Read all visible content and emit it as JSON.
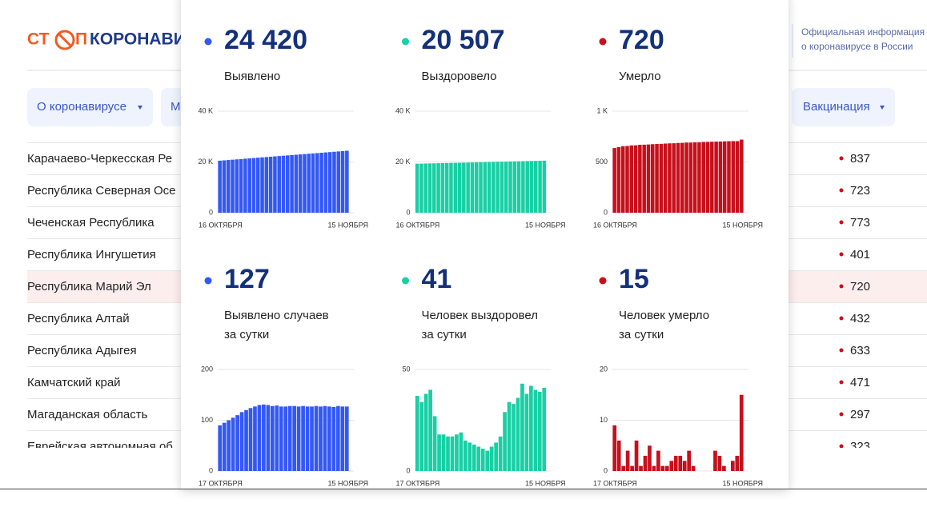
{
  "header": {
    "logo": {
      "left": "СТ",
      "middle": "П",
      "right": "КОРОНАВИ"
    },
    "info": [
      "Официальная информация",
      "о коронавирусе в России"
    ]
  },
  "nav": [
    "О коронавирусе",
    "М",
    "Вакцинация"
  ],
  "table": {
    "highlight_row": 4,
    "rows": [
      [
        "Карачаево-Черкесская Ре",
        837
      ],
      [
        "Республика Северная Осе",
        723
      ],
      [
        "Чеченская Республика",
        773
      ],
      [
        "Республика Ингушетия",
        401
      ],
      [
        "Республика Марий Эл",
        720
      ],
      [
        "Республика Алтай",
        432
      ],
      [
        "Республика Адыгея",
        633
      ],
      [
        "Камчатский край",
        471
      ],
      [
        "Магаданская область",
        297
      ],
      [
        "Еврейская автономная об",
        323
      ]
    ]
  },
  "panels": [
    {
      "value": "24 420",
      "label": [
        "Выявлено"
      ]
    },
    {
      "value": "20 507",
      "label": [
        "Выздоровело"
      ]
    },
    {
      "value": "720",
      "label": [
        "Умерло"
      ]
    },
    {
      "value": "127",
      "label": [
        "Выявлено случаев",
        "за сутки"
      ]
    },
    {
      "value": "41",
      "label": [
        "Человек выздоровел",
        "за сутки"
      ]
    },
    {
      "value": "15",
      "label": [
        "Человек умерло",
        "за сутки"
      ]
    }
  ],
  "chart_data": [
    {
      "type": "bar",
      "color": "#3358f4",
      "grid": true,
      "ylim": [
        0,
        40000
      ],
      "yticks": [
        0,
        {
          "value": 20000,
          "label": "20 K"
        },
        {
          "value": 40000,
          "label": "40 K"
        }
      ],
      "categories": [
        "16 ОКТЯБРЯ",
        null,
        null,
        null,
        null,
        null,
        null,
        null,
        null,
        null,
        null,
        null,
        null,
        null,
        null,
        null,
        null,
        null,
        null,
        null,
        null,
        null,
        null,
        null,
        null,
        null,
        null,
        null,
        null,
        null,
        "15 НОЯБРЯ"
      ],
      "values": [
        20500,
        20630,
        20760,
        20890,
        21020,
        21150,
        21280,
        21410,
        21540,
        21670,
        21800,
        21930,
        22060,
        22190,
        22320,
        22450,
        22580,
        22710,
        22840,
        22970,
        23100,
        23230,
        23360,
        23490,
        23620,
        23750,
        23880,
        24010,
        24140,
        24280,
        24420
      ]
    },
    {
      "type": "bar",
      "color": "#19cfa5",
      "grid": true,
      "ylim": [
        0,
        40000
      ],
      "yticks": [
        0,
        {
          "value": 20000,
          "label": "20 K"
        },
        {
          "value": 40000,
          "label": "40 K"
        }
      ],
      "categories": [
        "16 ОКТЯБРЯ",
        null,
        null,
        null,
        null,
        null,
        null,
        null,
        null,
        null,
        null,
        null,
        null,
        null,
        null,
        null,
        null,
        null,
        null,
        null,
        null,
        null,
        null,
        null,
        null,
        null,
        null,
        null,
        null,
        null,
        "15 НОЯБРЯ"
      ],
      "values": [
        19300,
        19340,
        19380,
        19420,
        19460,
        19500,
        19540,
        19580,
        19620,
        19660,
        19700,
        19740,
        19780,
        19820,
        19860,
        19900,
        19940,
        19980,
        20020,
        20060,
        20100,
        20140,
        20180,
        20220,
        20260,
        20300,
        20340,
        20380,
        20420,
        20460,
        20507
      ]
    },
    {
      "type": "bar",
      "color": "#c6101c",
      "grid": true,
      "ylim": [
        0,
        1000
      ],
      "yticks": [
        0,
        500,
        {
          "value": 1000,
          "label": "1 K"
        }
      ],
      "categories": [
        "16 ОКТЯБРЯ",
        null,
        null,
        null,
        null,
        null,
        null,
        null,
        null,
        null,
        null,
        null,
        null,
        null,
        null,
        null,
        null,
        null,
        null,
        null,
        null,
        null,
        null,
        null,
        null,
        null,
        null,
        null,
        null,
        null,
        "15 НОЯБРЯ"
      ],
      "values": [
        637,
        646,
        655,
        657,
        663,
        664,
        669,
        670,
        672,
        675,
        677,
        678,
        681,
        683,
        684,
        687,
        688,
        691,
        691,
        693,
        694,
        697,
        698,
        699,
        700,
        701,
        703,
        704,
        705,
        705,
        720
      ]
    },
    {
      "type": "bar",
      "color": "#3358f4",
      "grid": true,
      "ylim": [
        0,
        200
      ],
      "yticks": [
        0,
        100,
        200
      ],
      "categories": [
        "17 ОКТЯБРЯ",
        null,
        null,
        null,
        null,
        null,
        null,
        null,
        null,
        null,
        null,
        null,
        null,
        null,
        null,
        null,
        null,
        null,
        null,
        null,
        null,
        null,
        null,
        null,
        null,
        null,
        null,
        null,
        null,
        "15 НОЯБРЯ"
      ],
      "values": [
        90,
        95,
        100,
        105,
        110,
        116,
        120,
        124,
        127,
        130,
        131,
        130,
        128,
        129,
        127,
        127,
        128,
        128,
        127,
        128,
        127,
        127,
        128,
        127,
        128,
        127,
        126,
        128,
        127,
        127
      ]
    },
    {
      "type": "bar",
      "color": "#19cfa5",
      "grid": true,
      "ylim": [
        0,
        50
      ],
      "yticks": [
        0,
        50
      ],
      "categories": [
        "17 ОКТЯБРЯ",
        null,
        null,
        null,
        null,
        null,
        null,
        null,
        null,
        null,
        null,
        null,
        null,
        null,
        null,
        null,
        null,
        null,
        null,
        null,
        null,
        null,
        null,
        null,
        null,
        null,
        null,
        null,
        null,
        "15 НОЯБРЯ"
      ],
      "values": [
        37,
        34,
        38,
        40,
        27,
        18,
        18,
        17,
        17,
        18,
        19,
        15,
        14,
        13,
        12,
        11,
        10,
        12,
        14,
        17,
        29,
        34,
        33,
        36,
        43,
        38,
        42,
        40,
        39,
        41
      ]
    },
    {
      "type": "bar",
      "color": "#c6101c",
      "grid": true,
      "ylim": [
        0,
        20
      ],
      "yticks": [
        0,
        10,
        20
      ],
      "categories": [
        "17 ОКТЯБРЯ",
        null,
        null,
        null,
        null,
        null,
        null,
        null,
        null,
        null,
        null,
        null,
        null,
        null,
        null,
        null,
        null,
        null,
        null,
        null,
        null,
        null,
        null,
        null,
        null,
        null,
        null,
        null,
        null,
        "15 НОЯБРЯ"
      ],
      "values": [
        9,
        6,
        1,
        4,
        1,
        6,
        1,
        3,
        5,
        1,
        4,
        1,
        1,
        2,
        3,
        3,
        2,
        4,
        1,
        0,
        0,
        0,
        0,
        4,
        3,
        1,
        0,
        2,
        3,
        15
      ]
    }
  ]
}
